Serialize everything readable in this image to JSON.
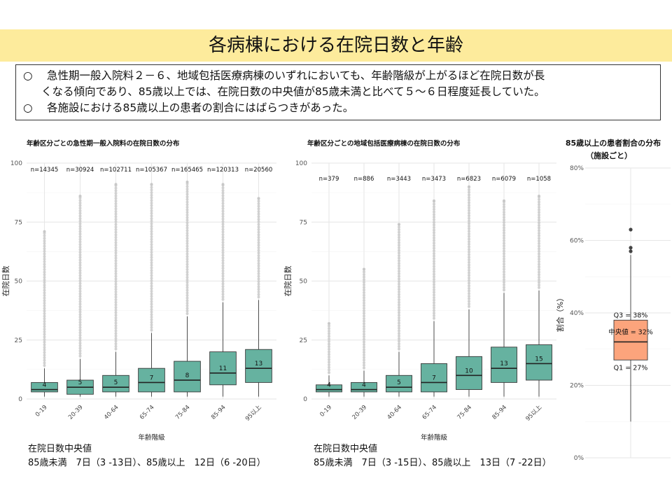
{
  "title": "各病棟における在院日数と年齢",
  "summary": {
    "bullet": "○",
    "line1": "急性期一般入院料２－６、地域包括医療病棟のいずれにおいても、年齢階級が上がるほど在院日数が長",
    "line1b": "くなる傾向であり、85歳以上では、在院日数の中央値が85歳未満と比べて５～６日程度延長していた。",
    "line2": "各施設における85歳以上の患者の割合にはばらつきがあった。"
  },
  "colors": {
    "box_fill": "#66b2a0",
    "box_stroke": "#3a3a3a",
    "outlier": "#c8c8c8",
    "pct_box_fill": "#fca47c",
    "grid": "#e6e6e6"
  },
  "chart_data": [
    {
      "type": "boxplot",
      "title": "年齢区分ごとの急性期一般入院料の在院日数の分布",
      "xlabel": "年齢階級",
      "ylabel": "在院日数",
      "ylim": [
        0,
        100
      ],
      "yticks": [
        0,
        25,
        50,
        75,
        100
      ],
      "categories": [
        "0-19",
        "20-39",
        "40-64",
        "65-74",
        "75-84",
        "85-94",
        "95以上"
      ],
      "n_labels": [
        "n=14345",
        "n=30924",
        "n=102711",
        "n=105367",
        "n=165465",
        "n=120313",
        "n=20560"
      ],
      "boxes": [
        {
          "median": 4,
          "q1": 3,
          "q3": 7,
          "whisker_low": 1,
          "whisker_high": 13,
          "outlier_max": 71
        },
        {
          "median": 5,
          "q1": 2,
          "q3": 8,
          "whisker_low": 1,
          "whisker_high": 17,
          "outlier_max": 86
        },
        {
          "median": 5,
          "q1": 3,
          "q3": 10,
          "whisker_low": 1,
          "whisker_high": 20,
          "outlier_max": 91
        },
        {
          "median": 7,
          "q1": 3,
          "q3": 13,
          "whisker_low": 1,
          "whisker_high": 28,
          "outlier_max": 91
        },
        {
          "median": 8,
          "q1": 3,
          "q3": 16,
          "whisker_low": 1,
          "whisker_high": 35,
          "outlier_max": 92
        },
        {
          "median": 11,
          "q1": 6,
          "q3": 20,
          "whisker_low": 1,
          "whisker_high": 41,
          "outlier_max": 91
        },
        {
          "median": 13,
          "q1": 7,
          "q3": 21,
          "whisker_low": 1,
          "whisker_high": 42,
          "outlier_max": 85
        }
      ],
      "median_labels": [
        "4",
        "5",
        "5",
        "7",
        "8",
        "11",
        "13"
      ],
      "footnote_title": "在院日数中央値",
      "footnote": "85歳未満　7日（3 -13日）、85歳以上　12日（6 -20日）"
    },
    {
      "type": "boxplot",
      "title": "年齢区分ごとの地域包括医療病棟の在院日数の分布",
      "xlabel": "年齢階級",
      "ylabel": "在院日数",
      "ylim": [
        0,
        100
      ],
      "yticks": [
        0,
        25,
        50,
        75,
        100
      ],
      "categories": [
        "0-19",
        "20-39",
        "40-64",
        "65-74",
        "75-84",
        "85-94",
        "95以上"
      ],
      "n_labels": [
        "n=379",
        "n=886",
        "n=3443",
        "n=3473",
        "n=6823",
        "n=6079",
        "n=1058"
      ],
      "boxes": [
        {
          "median": 4,
          "q1": 3,
          "q3": 6,
          "whisker_low": 1,
          "whisker_high": 10,
          "outlier_max": 32
        },
        {
          "median": 4,
          "q1": 3,
          "q3": 7,
          "whisker_low": 1,
          "whisker_high": 12,
          "outlier_max": 55
        },
        {
          "median": 5,
          "q1": 3,
          "q3": 10,
          "whisker_low": 1,
          "whisker_high": 20,
          "outlier_max": 74
        },
        {
          "median": 7,
          "q1": 3,
          "q3": 15,
          "whisker_low": 1,
          "whisker_high": 33,
          "outlier_max": 84
        },
        {
          "median": 10,
          "q1": 4,
          "q3": 18,
          "whisker_low": 1,
          "whisker_high": 38,
          "outlier_max": 90
        },
        {
          "median": 13,
          "q1": 7,
          "q3": 22,
          "whisker_low": 1,
          "whisker_high": 45,
          "outlier_max": 84
        },
        {
          "median": 15,
          "q1": 8,
          "q3": 23,
          "whisker_low": 1,
          "whisker_high": 46,
          "outlier_max": 86
        }
      ],
      "median_labels": [
        "4",
        "4",
        "5",
        "7",
        "10",
        "13",
        "15"
      ],
      "footnote_title": "在院日数中央値",
      "footnote": "85歳未満　7日（3 -15日）、85歳以上　13日（7 -22日）"
    },
    {
      "type": "boxplot",
      "title": "85歳以上の患者割合の分布",
      "subtitle": "（施設ごと）",
      "ylabel": "割合（%）",
      "ylim": [
        0,
        0.8
      ],
      "yticks": [
        "0%",
        "20%",
        "40%",
        "60%",
        "80%"
      ],
      "box": {
        "median": 0.32,
        "q1": 0.27,
        "q3": 0.38,
        "whisker_low": 0.1,
        "whisker_high": 0.56,
        "outliers": [
          0.57,
          0.58,
          0.63
        ]
      },
      "q3_label": "Q3 = 38%",
      "median_label": "中央値 = 32%",
      "q1_label": "Q1 = 27%"
    }
  ]
}
